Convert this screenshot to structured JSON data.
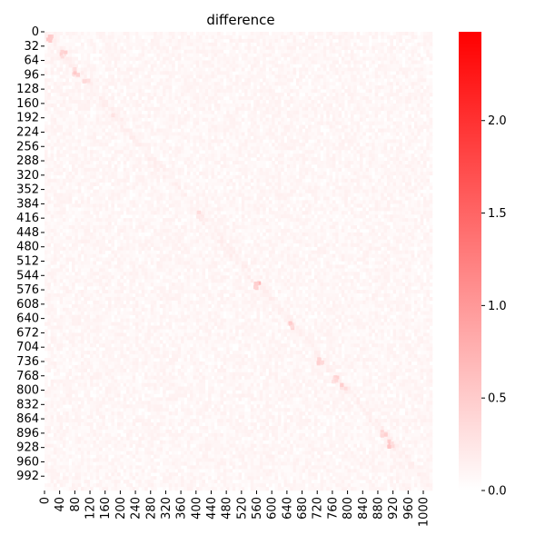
{
  "chart_data": {
    "type": "heatmap",
    "title": "difference",
    "x_tick_labels": [
      "0",
      "40",
      "80",
      "120",
      "160",
      "200",
      "240",
      "280",
      "320",
      "360",
      "400",
      "440",
      "480",
      "520",
      "560",
      "600",
      "640",
      "680",
      "720",
      "760",
      "800",
      "840",
      "880",
      "920",
      "960",
      "1000"
    ],
    "x_tick_values": [
      0,
      40,
      80,
      120,
      160,
      200,
      240,
      280,
      320,
      360,
      400,
      440,
      480,
      520,
      560,
      600,
      640,
      680,
      720,
      760,
      800,
      840,
      880,
      920,
      960,
      1000
    ],
    "y_tick_labels": [
      "0",
      "32",
      "64",
      "96",
      "128",
      "160",
      "192",
      "224",
      "256",
      "288",
      "320",
      "352",
      "384",
      "416",
      "448",
      "480",
      "512",
      "544",
      "576",
      "608",
      "640",
      "672",
      "704",
      "736",
      "768",
      "800",
      "832",
      "864",
      "896",
      "928",
      "960",
      "992"
    ],
    "y_tick_values": [
      0,
      32,
      64,
      96,
      128,
      160,
      192,
      224,
      256,
      288,
      320,
      352,
      384,
      416,
      448,
      480,
      512,
      544,
      576,
      608,
      640,
      672,
      704,
      736,
      768,
      800,
      832,
      864,
      896,
      928,
      960,
      992
    ],
    "xlim": [
      0,
      1024
    ],
    "ylim": [
      0,
      1024
    ],
    "colorbar": {
      "min": 0.0,
      "max": 2.48,
      "tick_labels": [
        "0.0",
        "0.5",
        "1.0",
        "1.5",
        "2.0"
      ],
      "tick_values": [
        0.0,
        0.5,
        1.0,
        1.5,
        2.0
      ],
      "color_low": "#ffffff",
      "color_high": "#ff0000"
    },
    "background_level": 0.08,
    "diagonal_hotspots": [
      {
        "x": 16,
        "y": 16,
        "value": 0.45
      },
      {
        "x": 50,
        "y": 50,
        "value": 0.4
      },
      {
        "x": 85,
        "y": 90,
        "value": 0.45
      },
      {
        "x": 110,
        "y": 115,
        "value": 0.35
      },
      {
        "x": 185,
        "y": 190,
        "value": 0.25
      },
      {
        "x": 410,
        "y": 410,
        "value": 0.3
      },
      {
        "x": 560,
        "y": 566,
        "value": 0.6
      },
      {
        "x": 650,
        "y": 655,
        "value": 0.5
      },
      {
        "x": 730,
        "y": 735,
        "value": 0.45
      },
      {
        "x": 770,
        "y": 775,
        "value": 0.45
      },
      {
        "x": 790,
        "y": 790,
        "value": 0.4
      },
      {
        "x": 895,
        "y": 895,
        "value": 0.4
      },
      {
        "x": 915,
        "y": 920,
        "value": 0.5
      }
    ]
  }
}
